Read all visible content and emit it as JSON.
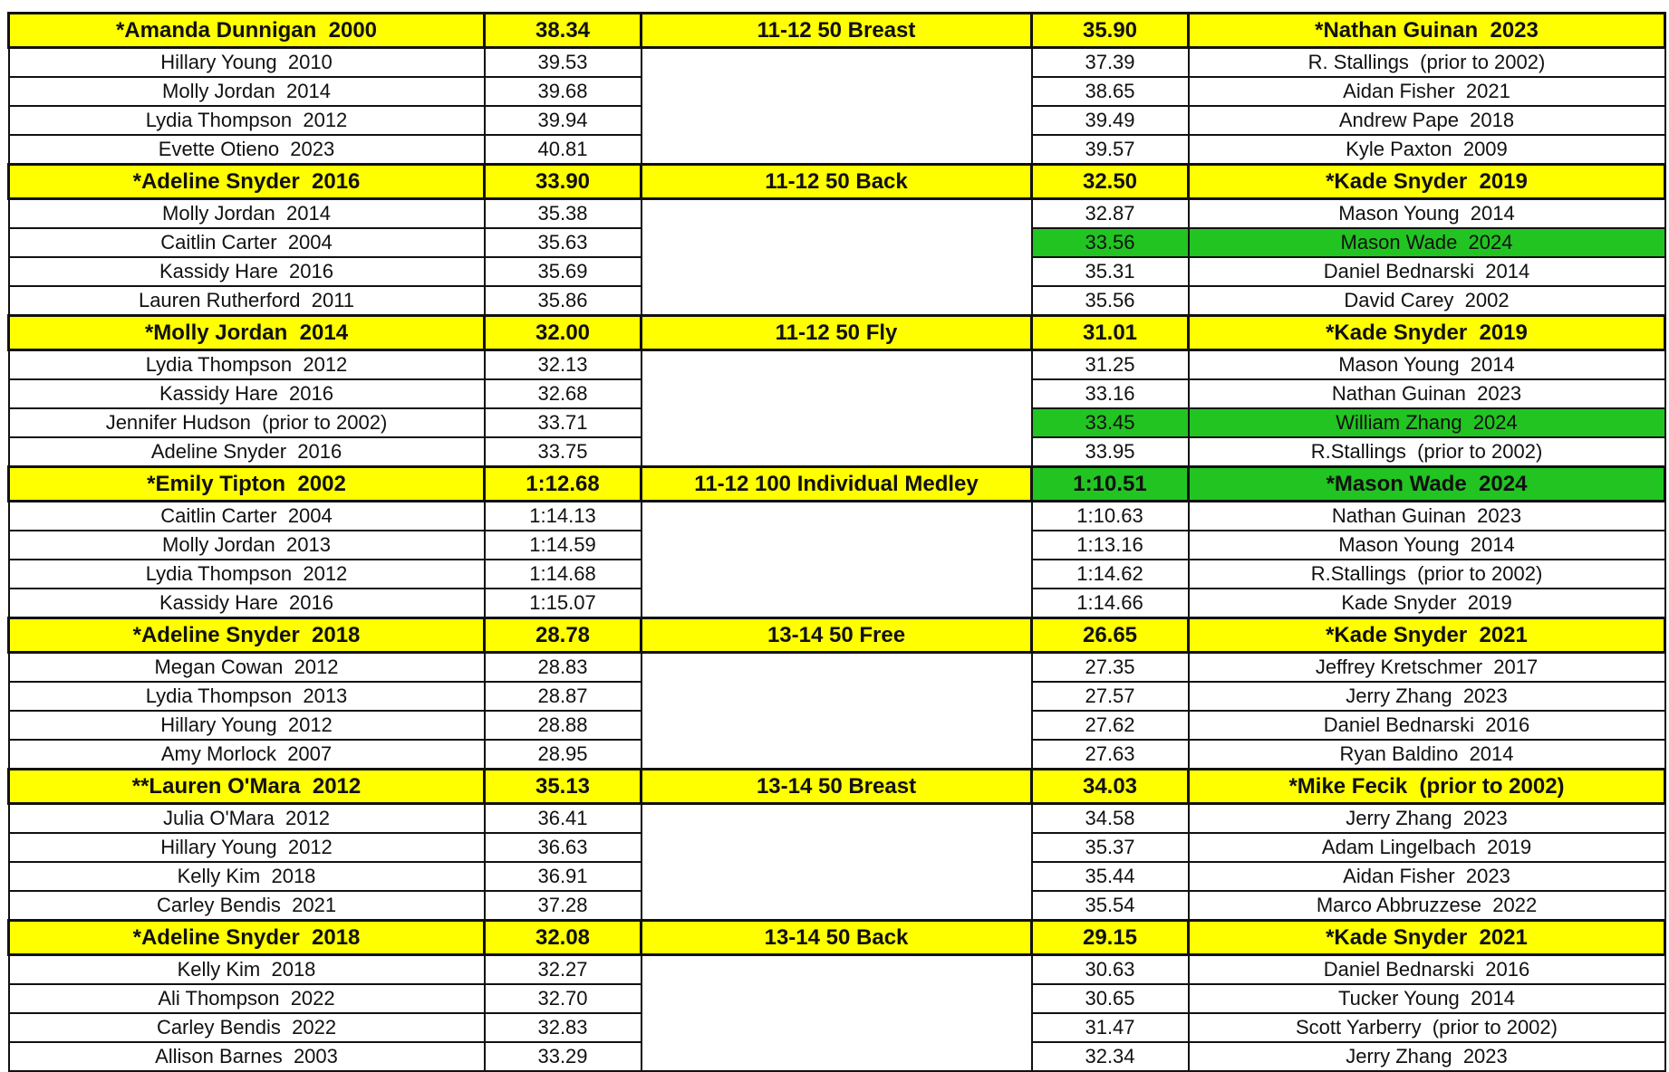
{
  "colors": {
    "record_highlight": "#ffff00",
    "new_entry_highlight": "#22c422"
  },
  "events": [
    {
      "event": "11-12 50 Breast",
      "girls": [
        [
          "*Amanda Dunnigan  2000",
          "38.34"
        ],
        [
          "Hillary Young  2010",
          "39.53"
        ],
        [
          "Molly Jordan  2014",
          "39.68"
        ],
        [
          "Lydia Thompson  2012",
          "39.94"
        ],
        [
          "Evette Otieno  2023",
          "40.81"
        ]
      ],
      "boys": [
        [
          "35.90",
          "*Nathan Guinan  2023"
        ],
        [
          "37.39",
          "R. Stallings  (prior to 2002)"
        ],
        [
          "38.65",
          "Aidan Fisher  2021"
        ],
        [
          "39.49",
          "Andrew Pape  2018"
        ],
        [
          "39.57",
          "Kyle Paxton  2009"
        ]
      ],
      "green_rows": []
    },
    {
      "event": "11-12 50 Back",
      "girls": [
        [
          "*Adeline Snyder  2016",
          "33.90"
        ],
        [
          "Molly Jordan  2014",
          "35.38"
        ],
        [
          "Caitlin Carter  2004",
          "35.63"
        ],
        [
          "Kassidy Hare  2016",
          "35.69"
        ],
        [
          "Lauren Rutherford  2011",
          "35.86"
        ]
      ],
      "boys": [
        [
          "32.50",
          "*Kade Snyder  2019"
        ],
        [
          "32.87",
          "Mason Young  2014"
        ],
        [
          "33.56",
          "Mason Wade  2024"
        ],
        [
          "35.31",
          "Daniel Bednarski  2014"
        ],
        [
          "35.56",
          "David Carey  2002"
        ]
      ],
      "green_rows": [
        2
      ]
    },
    {
      "event": "11-12 50 Fly",
      "girls": [
        [
          "*Molly Jordan  2014",
          "32.00"
        ],
        [
          "Lydia Thompson  2012",
          "32.13"
        ],
        [
          "Kassidy Hare  2016",
          "32.68"
        ],
        [
          "Jennifer Hudson  (prior to 2002)",
          "33.71"
        ],
        [
          "Adeline Snyder  2016",
          "33.75"
        ]
      ],
      "boys": [
        [
          "31.01",
          "*Kade Snyder  2019"
        ],
        [
          "31.25",
          "Mason Young  2014"
        ],
        [
          "33.16",
          "Nathan Guinan  2023"
        ],
        [
          "33.45",
          "William Zhang  2024"
        ],
        [
          "33.95",
          "R.Stallings  (prior to 2002)"
        ]
      ],
      "green_rows": [
        3
      ]
    },
    {
      "event": "11-12 100 Individual Medley",
      "girls": [
        [
          "*Emily Tipton  2002",
          "1:12.68"
        ],
        [
          "Caitlin Carter  2004",
          "1:14.13"
        ],
        [
          "Molly Jordan  2013",
          "1:14.59"
        ],
        [
          "Lydia Thompson  2012",
          "1:14.68"
        ],
        [
          "Kassidy Hare  2016",
          "1:15.07"
        ]
      ],
      "boys": [
        [
          "1:10.51",
          "*Mason Wade  2024"
        ],
        [
          "1:10.63",
          "Nathan Guinan  2023"
        ],
        [
          "1:13.16",
          "Mason Young  2014"
        ],
        [
          "1:14.62",
          "R.Stallings  (prior to 2002)"
        ],
        [
          "1:14.66",
          "Kade Snyder  2019"
        ]
      ],
      "green_rows": [
        0
      ]
    },
    {
      "event": "13-14 50 Free",
      "girls": [
        [
          "*Adeline Snyder  2018",
          "28.78"
        ],
        [
          "Megan Cowan  2012",
          "28.83"
        ],
        [
          "Lydia Thompson  2013",
          "28.87"
        ],
        [
          "Hillary Young  2012",
          "28.88"
        ],
        [
          "Amy Morlock  2007",
          "28.95"
        ]
      ],
      "boys": [
        [
          "26.65",
          "*Kade Snyder  2021"
        ],
        [
          "27.35",
          "Jeffrey Kretschmer  2017"
        ],
        [
          "27.57",
          "Jerry Zhang  2023"
        ],
        [
          "27.62",
          "Daniel Bednarski  2016"
        ],
        [
          "27.63",
          "Ryan Baldino  2014"
        ]
      ],
      "green_rows": []
    },
    {
      "event": "13-14 50 Breast",
      "girls": [
        [
          "**Lauren O'Mara  2012",
          "35.13"
        ],
        [
          "Julia O'Mara  2012",
          "36.41"
        ],
        [
          "Hillary Young  2012",
          "36.63"
        ],
        [
          "Kelly Kim  2018",
          "36.91"
        ],
        [
          "Carley Bendis  2021",
          "37.28"
        ]
      ],
      "boys": [
        [
          "34.03",
          "*Mike Fecik  (prior to 2002)"
        ],
        [
          "34.58",
          "Jerry Zhang  2023"
        ],
        [
          "35.37",
          "Adam Lingelbach  2019"
        ],
        [
          "35.44",
          "Aidan Fisher  2023"
        ],
        [
          "35.54",
          "Marco Abbruzzese  2022"
        ]
      ],
      "green_rows": []
    },
    {
      "event": "13-14 50 Back",
      "girls": [
        [
          "*Adeline Snyder  2018",
          "32.08"
        ],
        [
          "Kelly Kim  2018",
          "32.27"
        ],
        [
          "Ali Thompson  2022",
          "32.70"
        ],
        [
          "Carley Bendis  2022",
          "32.83"
        ],
        [
          "Allison Barnes  2003",
          "33.29"
        ]
      ],
      "boys": [
        [
          "29.15",
          "*Kade Snyder  2021"
        ],
        [
          "30.63",
          "Daniel Bednarski  2016"
        ],
        [
          "30.65",
          "Tucker Young  2014"
        ],
        [
          "31.47",
          "Scott Yarberry  (prior to 2002)"
        ],
        [
          "32.34",
          "Jerry Zhang  2023"
        ]
      ],
      "green_rows": []
    }
  ]
}
